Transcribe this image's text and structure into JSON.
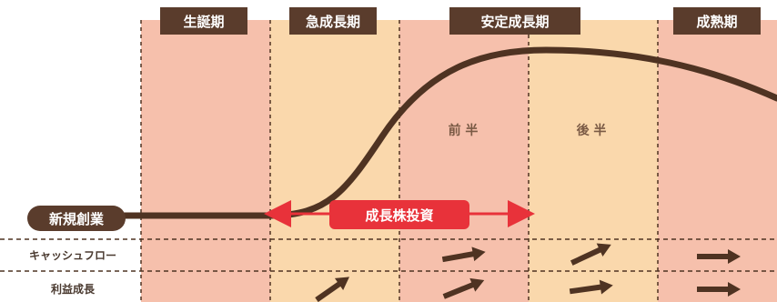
{
  "stages": [
    {
      "id": "birth",
      "label": "生誕期"
    },
    {
      "id": "rapid",
      "label": "急成長期"
    },
    {
      "id": "stable",
      "label": "安定成長期"
    },
    {
      "id": "mature",
      "label": "成熟期"
    }
  ],
  "stable_halves": {
    "first": "前 半",
    "second": "後 半"
  },
  "start_label": "新規創業",
  "investment_label": "成長株投資",
  "rows": [
    {
      "id": "cashflow",
      "label": "キャッシュフロー"
    },
    {
      "id": "profit",
      "label": "利益成長"
    }
  ],
  "colors": {
    "header_bg": "#5a3c2c",
    "birth_bg": "#f6c0ac",
    "rapid_bg": "#fad8ac",
    "stable_first_bg": "#f6c0ac",
    "stable_second_bg": "#fad8ac",
    "mature_bg": "#f6c0ac",
    "curve": "#4f3322",
    "investment": "#e8323a"
  }
}
